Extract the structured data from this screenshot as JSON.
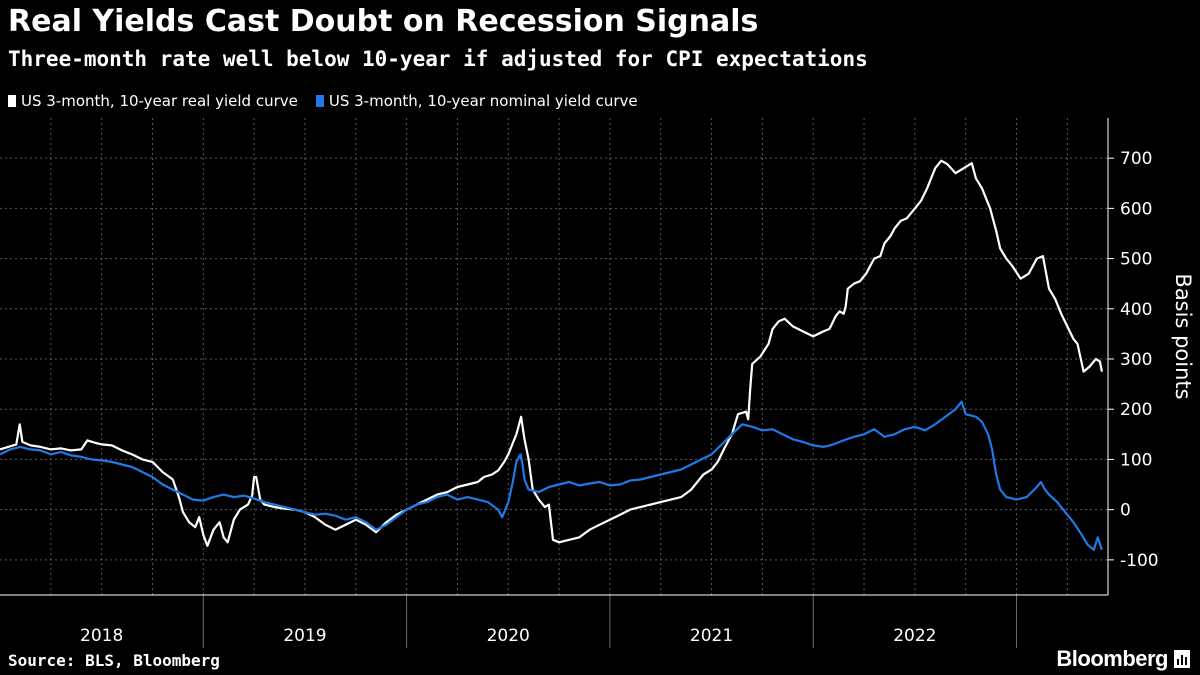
{
  "title": "Real Yields Cast Doubt on Recession Signals",
  "subtitle": "Three-month rate well below 10-year if adjusted for CPI expectations",
  "source": "Source: BLS, Bloomberg",
  "brand": "Bloomberg",
  "colors": {
    "background": "#000000",
    "real": "#ffffff",
    "nominal": "#1f7ae8",
    "grid": "#5a5a5a"
  },
  "chart_data": {
    "type": "line",
    "ylabel": "Basis points",
    "ylim": [
      -170,
      780
    ],
    "xlim": [
      2017.5,
      2022.95
    ],
    "yticks": [
      -100,
      0,
      100,
      200,
      300,
      400,
      500,
      600,
      700
    ],
    "xticks": [
      {
        "label": "2018",
        "value": 2018.0
      },
      {
        "label": "2019",
        "value": 2019.0
      },
      {
        "label": "2020",
        "value": 2020.0
      },
      {
        "label": "2021",
        "value": 2021.0
      },
      {
        "label": "2022",
        "value": 2022.0
      }
    ],
    "year_boundaries": [
      2018.5,
      2019.5,
      2020.5,
      2021.5,
      2022.5
    ],
    "grid": true,
    "legend_position": "top-left",
    "series": [
      {
        "name": "US 3-month, 10-year real yield curve",
        "color": "#ffffff",
        "points": [
          [
            2017.5,
            120
          ],
          [
            2017.54,
            125
          ],
          [
            2017.58,
            130
          ],
          [
            2017.597,
            170
          ],
          [
            2017.61,
            135
          ],
          [
            2017.65,
            128
          ],
          [
            2017.7,
            125
          ],
          [
            2017.75,
            120
          ],
          [
            2017.8,
            122
          ],
          [
            2017.85,
            118
          ],
          [
            2017.9,
            120
          ],
          [
            2017.93,
            138
          ],
          [
            2017.97,
            133
          ],
          [
            2018.0,
            130
          ],
          [
            2018.05,
            128
          ],
          [
            2018.1,
            118
          ],
          [
            2018.15,
            110
          ],
          [
            2018.2,
            100
          ],
          [
            2018.25,
            95
          ],
          [
            2018.3,
            75
          ],
          [
            2018.35,
            60
          ],
          [
            2018.38,
            25
          ],
          [
            2018.4,
            -5
          ],
          [
            2018.43,
            -25
          ],
          [
            2018.46,
            -35
          ],
          [
            2018.48,
            -15
          ],
          [
            2018.5,
            -50
          ],
          [
            2018.52,
            -72
          ],
          [
            2018.55,
            -40
          ],
          [
            2018.58,
            -25
          ],
          [
            2018.6,
            -55
          ],
          [
            2018.62,
            -65
          ],
          [
            2018.65,
            -20
          ],
          [
            2018.68,
            0
          ],
          [
            2018.72,
            10
          ],
          [
            2018.74,
            28
          ],
          [
            2018.75,
            65
          ],
          [
            2018.76,
            65
          ],
          [
            2018.78,
            20
          ],
          [
            2018.8,
            10
          ],
          [
            2018.85,
            5
          ],
          [
            2018.9,
            2
          ],
          [
            2018.95,
            0
          ],
          [
            2019.0,
            -5
          ],
          [
            2019.05,
            -15
          ],
          [
            2019.1,
            -30
          ],
          [
            2019.15,
            -40
          ],
          [
            2019.2,
            -30
          ],
          [
            2019.25,
            -20
          ],
          [
            2019.3,
            -30
          ],
          [
            2019.35,
            -45
          ],
          [
            2019.4,
            -25
          ],
          [
            2019.45,
            -10
          ],
          [
            2019.5,
            0
          ],
          [
            2019.55,
            10
          ],
          [
            2019.6,
            20
          ],
          [
            2019.65,
            30
          ],
          [
            2019.7,
            35
          ],
          [
            2019.75,
            45
          ],
          [
            2019.8,
            50
          ],
          [
            2019.85,
            55
          ],
          [
            2019.88,
            65
          ],
          [
            2019.92,
            70
          ],
          [
            2019.95,
            78
          ],
          [
            2019.98,
            95
          ],
          [
            2020.0,
            110
          ],
          [
            2020.02,
            130
          ],
          [
            2020.04,
            150
          ],
          [
            2020.063,
            185
          ],
          [
            2020.08,
            140
          ],
          [
            2020.1,
            100
          ],
          [
            2020.12,
            40
          ],
          [
            2020.15,
            20
          ],
          [
            2020.18,
            5
          ],
          [
            2020.2,
            10
          ],
          [
            2020.22,
            -60
          ],
          [
            2020.25,
            -65
          ],
          [
            2020.3,
            -60
          ],
          [
            2020.35,
            -55
          ],
          [
            2020.4,
            -40
          ],
          [
            2020.45,
            -30
          ],
          [
            2020.5,
            -20
          ],
          [
            2020.55,
            -10
          ],
          [
            2020.6,
            0
          ],
          [
            2020.65,
            5
          ],
          [
            2020.7,
            10
          ],
          [
            2020.75,
            15
          ],
          [
            2020.8,
            20
          ],
          [
            2020.85,
            25
          ],
          [
            2020.9,
            40
          ],
          [
            2020.93,
            55
          ],
          [
            2020.96,
            70
          ],
          [
            2021.0,
            80
          ],
          [
            2021.03,
            95
          ],
          [
            2021.06,
            120
          ],
          [
            2021.1,
            150
          ],
          [
            2021.13,
            190
          ],
          [
            2021.17,
            195
          ],
          [
            2021.18,
            180
          ],
          [
            2021.19,
            240
          ],
          [
            2021.2,
            290
          ],
          [
            2021.24,
            305
          ],
          [
            2021.28,
            330
          ],
          [
            2021.3,
            360
          ],
          [
            2021.33,
            375
          ],
          [
            2021.36,
            380
          ],
          [
            2021.4,
            365
          ],
          [
            2021.45,
            355
          ],
          [
            2021.5,
            345
          ],
          [
            2021.55,
            355
          ],
          [
            2021.58,
            360
          ],
          [
            2021.61,
            385
          ],
          [
            2021.63,
            395
          ],
          [
            2021.65,
            390
          ],
          [
            2021.66,
            405
          ],
          [
            2021.67,
            440
          ],
          [
            2021.7,
            450
          ],
          [
            2021.73,
            455
          ],
          [
            2021.76,
            470
          ],
          [
            2021.78,
            485
          ],
          [
            2021.8,
            500
          ],
          [
            2021.83,
            505
          ],
          [
            2021.85,
            530
          ],
          [
            2021.88,
            545
          ],
          [
            2021.9,
            560
          ],
          [
            2021.93,
            575
          ],
          [
            2021.96,
            580
          ],
          [
            2022.0,
            600
          ],
          [
            2022.03,
            615
          ],
          [
            2022.06,
            640
          ],
          [
            2022.1,
            680
          ],
          [
            2022.13,
            695
          ],
          [
            2022.16,
            688
          ],
          [
            2022.2,
            670
          ],
          [
            2022.24,
            680
          ],
          [
            2022.28,
            690
          ],
          [
            2022.3,
            660
          ],
          [
            2022.33,
            640
          ],
          [
            2022.35,
            620
          ],
          [
            2022.37,
            600
          ],
          [
            2022.4,
            555
          ],
          [
            2022.42,
            520
          ],
          [
            2022.45,
            500
          ],
          [
            2022.48,
            485
          ],
          [
            2022.52,
            460
          ],
          [
            2022.56,
            470
          ],
          [
            2022.6,
            500
          ],
          [
            2022.63,
            505
          ],
          [
            2022.66,
            440
          ],
          [
            2022.69,
            420
          ],
          [
            2022.72,
            390
          ],
          [
            2022.75,
            365
          ],
          [
            2022.78,
            340
          ],
          [
            2022.8,
            330
          ],
          [
            2022.83,
            275
          ],
          [
            2022.86,
            285
          ],
          [
            2022.89,
            300
          ],
          [
            2022.91,
            295
          ],
          [
            2022.92,
            275
          ]
        ]
      },
      {
        "name": "US 3-month, 10-year nominal yield curve",
        "color": "#1f7ae8",
        "points": [
          [
            2017.5,
            110
          ],
          [
            2017.55,
            120
          ],
          [
            2017.6,
            125
          ],
          [
            2017.65,
            120
          ],
          [
            2017.7,
            118
          ],
          [
            2017.75,
            110
          ],
          [
            2017.8,
            115
          ],
          [
            2017.85,
            108
          ],
          [
            2017.9,
            105
          ],
          [
            2017.95,
            100
          ],
          [
            2018.0,
            98
          ],
          [
            2018.05,
            95
          ],
          [
            2018.1,
            90
          ],
          [
            2018.15,
            85
          ],
          [
            2018.2,
            75
          ],
          [
            2018.25,
            65
          ],
          [
            2018.3,
            50
          ],
          [
            2018.35,
            40
          ],
          [
            2018.4,
            30
          ],
          [
            2018.45,
            20
          ],
          [
            2018.5,
            18
          ],
          [
            2018.55,
            25
          ],
          [
            2018.6,
            30
          ],
          [
            2018.65,
            25
          ],
          [
            2018.7,
            28
          ],
          [
            2018.75,
            22
          ],
          [
            2018.8,
            15
          ],
          [
            2018.85,
            10
          ],
          [
            2018.9,
            5
          ],
          [
            2018.95,
            0
          ],
          [
            2019.0,
            -5
          ],
          [
            2019.05,
            -10
          ],
          [
            2019.1,
            -8
          ],
          [
            2019.15,
            -12
          ],
          [
            2019.2,
            -20
          ],
          [
            2019.25,
            -15
          ],
          [
            2019.3,
            -25
          ],
          [
            2019.35,
            -40
          ],
          [
            2019.4,
            -30
          ],
          [
            2019.45,
            -15
          ],
          [
            2019.5,
            0
          ],
          [
            2019.55,
            10
          ],
          [
            2019.6,
            15
          ],
          [
            2019.65,
            25
          ],
          [
            2019.7,
            30
          ],
          [
            2019.75,
            20
          ],
          [
            2019.8,
            25
          ],
          [
            2019.85,
            20
          ],
          [
            2019.9,
            15
          ],
          [
            2019.95,
            0
          ],
          [
            2019.97,
            -15
          ],
          [
            2020.0,
            15
          ],
          [
            2020.02,
            50
          ],
          [
            2020.04,
            95
          ],
          [
            2020.06,
            110
          ],
          [
            2020.07,
            90
          ],
          [
            2020.08,
            60
          ],
          [
            2020.1,
            40
          ],
          [
            2020.15,
            35
          ],
          [
            2020.2,
            45
          ],
          [
            2020.25,
            50
          ],
          [
            2020.3,
            55
          ],
          [
            2020.35,
            48
          ],
          [
            2020.4,
            52
          ],
          [
            2020.45,
            55
          ],
          [
            2020.5,
            48
          ],
          [
            2020.55,
            50
          ],
          [
            2020.6,
            58
          ],
          [
            2020.65,
            60
          ],
          [
            2020.7,
            65
          ],
          [
            2020.75,
            70
          ],
          [
            2020.8,
            75
          ],
          [
            2020.85,
            80
          ],
          [
            2020.9,
            90
          ],
          [
            2020.95,
            100
          ],
          [
            2021.0,
            110
          ],
          [
            2021.05,
            130
          ],
          [
            2021.1,
            150
          ],
          [
            2021.15,
            170
          ],
          [
            2021.2,
            165
          ],
          [
            2021.25,
            158
          ],
          [
            2021.3,
            160
          ],
          [
            2021.35,
            150
          ],
          [
            2021.4,
            140
          ],
          [
            2021.45,
            135
          ],
          [
            2021.5,
            128
          ],
          [
            2021.55,
            125
          ],
          [
            2021.6,
            130
          ],
          [
            2021.65,
            138
          ],
          [
            2021.7,
            145
          ],
          [
            2021.75,
            150
          ],
          [
            2021.8,
            160
          ],
          [
            2021.85,
            145
          ],
          [
            2021.9,
            150
          ],
          [
            2021.95,
            160
          ],
          [
            2022.0,
            165
          ],
          [
            2022.05,
            158
          ],
          [
            2022.1,
            170
          ],
          [
            2022.15,
            185
          ],
          [
            2022.2,
            200
          ],
          [
            2022.23,
            215
          ],
          [
            2022.25,
            190
          ],
          [
            2022.3,
            185
          ],
          [
            2022.33,
            175
          ],
          [
            2022.36,
            150
          ],
          [
            2022.38,
            120
          ],
          [
            2022.4,
            70
          ],
          [
            2022.42,
            40
          ],
          [
            2022.45,
            25
          ],
          [
            2022.5,
            20
          ],
          [
            2022.55,
            25
          ],
          [
            2022.6,
            45
          ],
          [
            2022.62,
            55
          ],
          [
            2022.64,
            40
          ],
          [
            2022.66,
            30
          ],
          [
            2022.7,
            15
          ],
          [
            2022.74,
            -5
          ],
          [
            2022.78,
            -25
          ],
          [
            2022.82,
            -50
          ],
          [
            2022.85,
            -70
          ],
          [
            2022.88,
            -80
          ],
          [
            2022.9,
            -55
          ],
          [
            2022.92,
            -80
          ]
        ]
      }
    ]
  }
}
